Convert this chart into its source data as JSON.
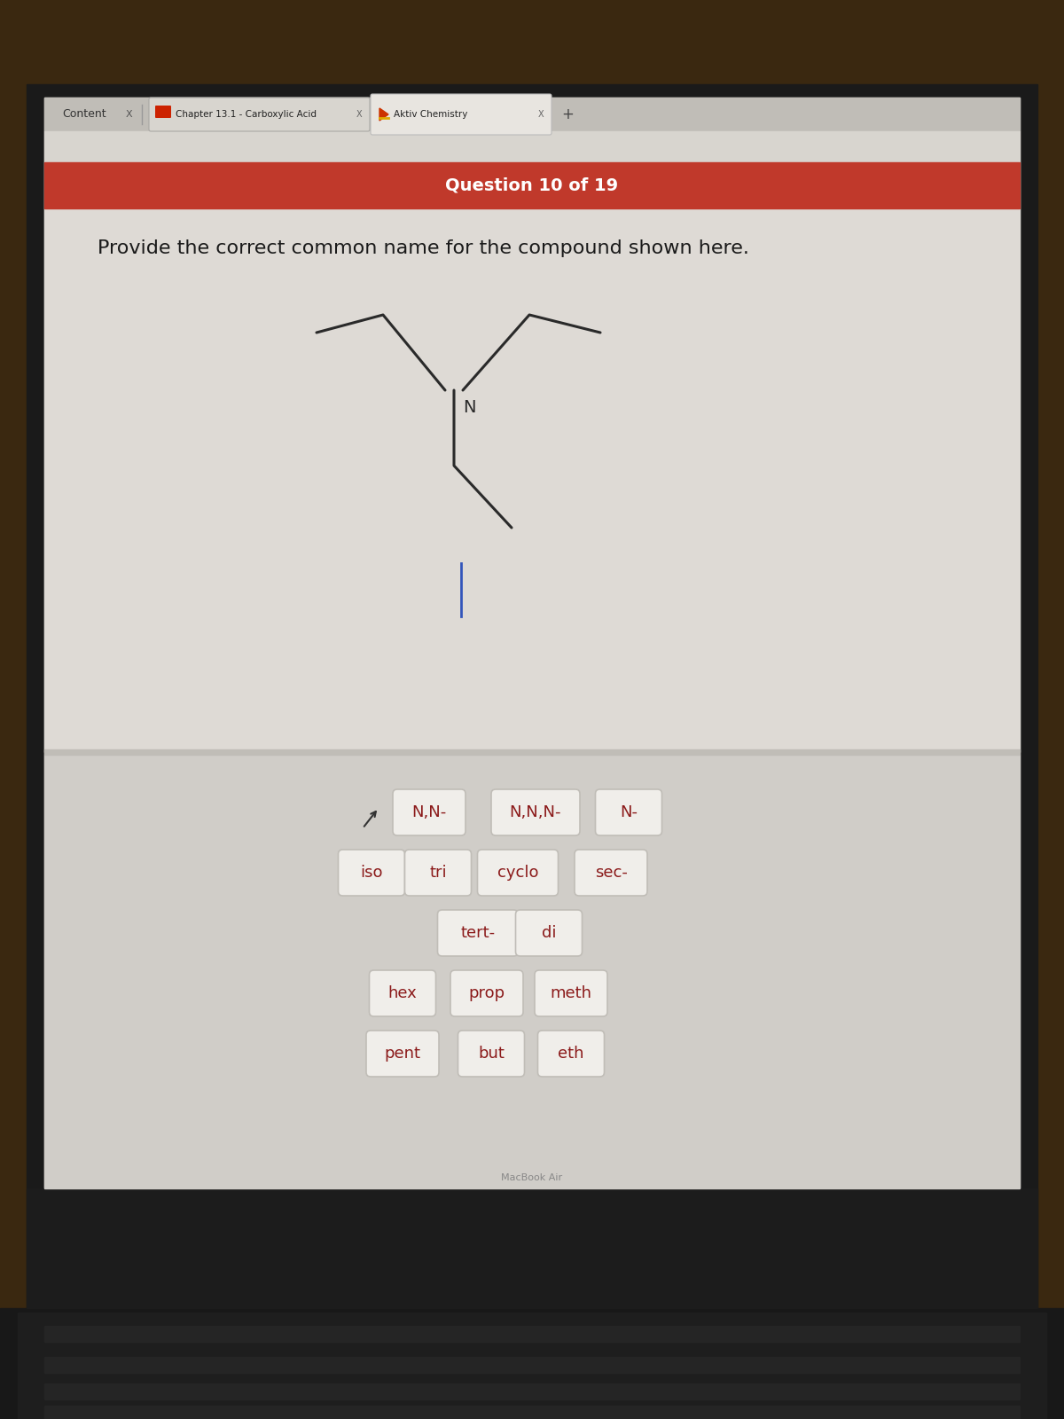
{
  "desk_color": "#3a2810",
  "desk_color2": "#4a3418",
  "laptop_frame_color": "#1a1a1a",
  "laptop_inner_frame": "#252525",
  "screen_bg": "#c8c5bf",
  "browser_tab_bar_bg": "#c0bdb7",
  "browser_tab_inactive_bg": "#b0ada7",
  "browser_active_tab_bg": "#dddad4",
  "browser_addr_bar_bg": "#d8d5cf",
  "page_bg_upper": "#dedad5",
  "page_bg_lower": "#d0cdc8",
  "divider_color": "#c0bdb7",
  "question_banner_color": "#c0392b",
  "question_banner_text": "Question 10 of 19",
  "question_banner_text_color": "#ffffff",
  "question_text": "Provide the correct common name for the compound shown here.",
  "question_text_color": "#1a1a1a",
  "tab_content": "Content",
  "tab_chapter": "Chapter 13.1 - Carboxylic Acid",
  "tab_aktiv": "Aktiv Chemistry",
  "molecule_color": "#2a2a2a",
  "N_label": "N",
  "cursor_color": "#3355bb",
  "answer_box_bg": "#f0eeea",
  "answer_box_border": "#c0bdb7",
  "answer_text_color": "#8b1a1a",
  "keyboard_dark": "#181818",
  "keyboard_mid": "#222222",
  "row1_labels": [
    "N,N-",
    "N,N,N-",
    "N-"
  ],
  "row2_labels": [
    "iso",
    "tri",
    "cyclo",
    "sec-"
  ],
  "row3_labels": [
    "tert-",
    "di"
  ],
  "row4_labels": [
    "hex",
    "prop",
    "meth"
  ],
  "row5_labels": [
    "pent",
    "but",
    "eth"
  ]
}
